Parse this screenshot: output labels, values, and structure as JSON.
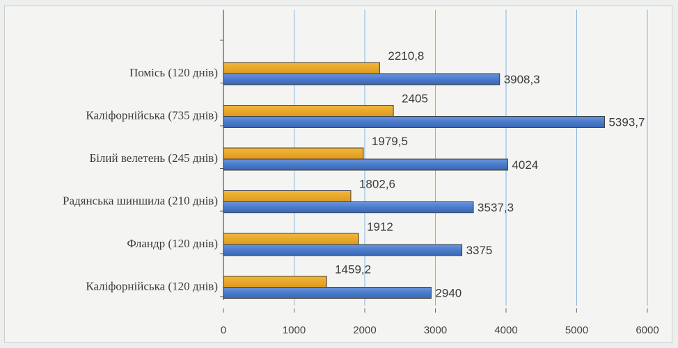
{
  "chart_data": {
    "type": "bar",
    "orientation": "horizontal",
    "categories": [
      "Помісь (120 днів)",
      "Каліфорнійська  (735 днів)",
      "Білий велетень (245 днів)",
      "Радянська  шиншила (210 днів)",
      "Фландр (120 днів)",
      "Каліфорнійська (120 днів)"
    ],
    "series": [
      {
        "color": "#e8a82a",
        "values": [
          2210.8,
          2405,
          1979.5,
          1802.6,
          1912,
          1459.2
        ],
        "labels": [
          "2210,8",
          "2405",
          "1979,5",
          "1802,6",
          "1912",
          "1459,2"
        ]
      },
      {
        "color": "#4a7bcb",
        "values": [
          3908.3,
          5393.7,
          4024,
          3537.3,
          3375,
          2940
        ],
        "labels": [
          "3908,3",
          "5393,7",
          "4024",
          "3537,3",
          "3375",
          "2940"
        ]
      }
    ],
    "xlim": [
      0,
      6000
    ],
    "xticks": [
      "0",
      "1000",
      "2000",
      "3000",
      "4000",
      "5000",
      "6000"
    ],
    "grid": "vertical",
    "legend": "none"
  }
}
